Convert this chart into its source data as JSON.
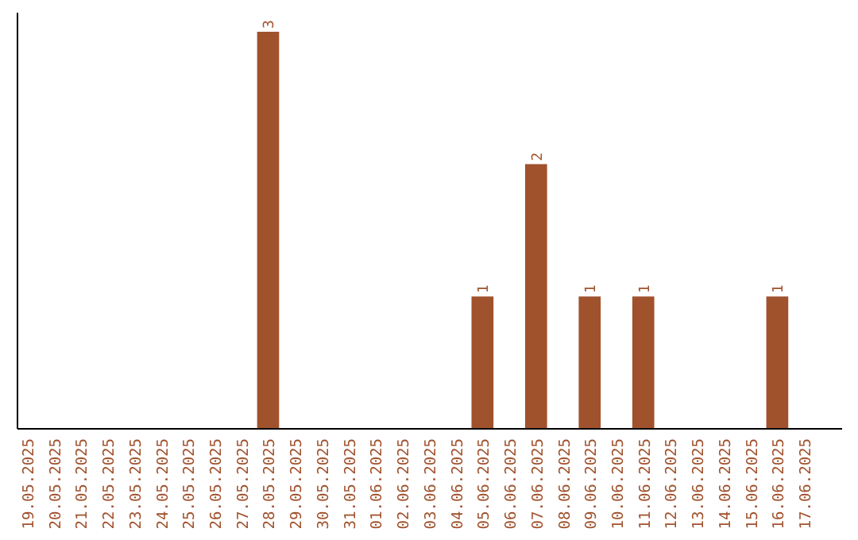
{
  "chart_data": {
    "type": "bar",
    "categories": [
      "19.05.2025",
      "20.05.2025",
      "21.05.2025",
      "22.05.2025",
      "23.05.2025",
      "24.05.2025",
      "25.05.2025",
      "26.05.2025",
      "27.05.2025",
      "28.05.2025",
      "29.05.2025",
      "30.05.2025",
      "31.05.2025",
      "01.06.2025",
      "02.06.2025",
      "03.06.2025",
      "04.06.2025",
      "05.06.2025",
      "06.06.2025",
      "07.06.2025",
      "08.06.2025",
      "09.06.2025",
      "10.06.2025",
      "11.06.2025",
      "12.06.2025",
      "13.06.2025",
      "14.06.2025",
      "15.06.2025",
      "16.06.2025",
      "17.06.2025"
    ],
    "values": [
      0,
      0,
      0,
      0,
      0,
      0,
      0,
      0,
      0,
      3,
      0,
      0,
      0,
      0,
      0,
      0,
      0,
      1,
      0,
      2,
      0,
      1,
      0,
      1,
      0,
      0,
      0,
      0,
      1,
      0
    ],
    "value_labels": [
      null,
      null,
      null,
      null,
      null,
      null,
      null,
      null,
      null,
      "3",
      null,
      null,
      null,
      null,
      null,
      null,
      null,
      "1",
      null,
      "2",
      null,
      "1",
      null,
      "1",
      null,
      null,
      null,
      null,
      "1",
      null
    ],
    "color": "#a0522d",
    "tick_labels": "x",
    "grid": false
  }
}
